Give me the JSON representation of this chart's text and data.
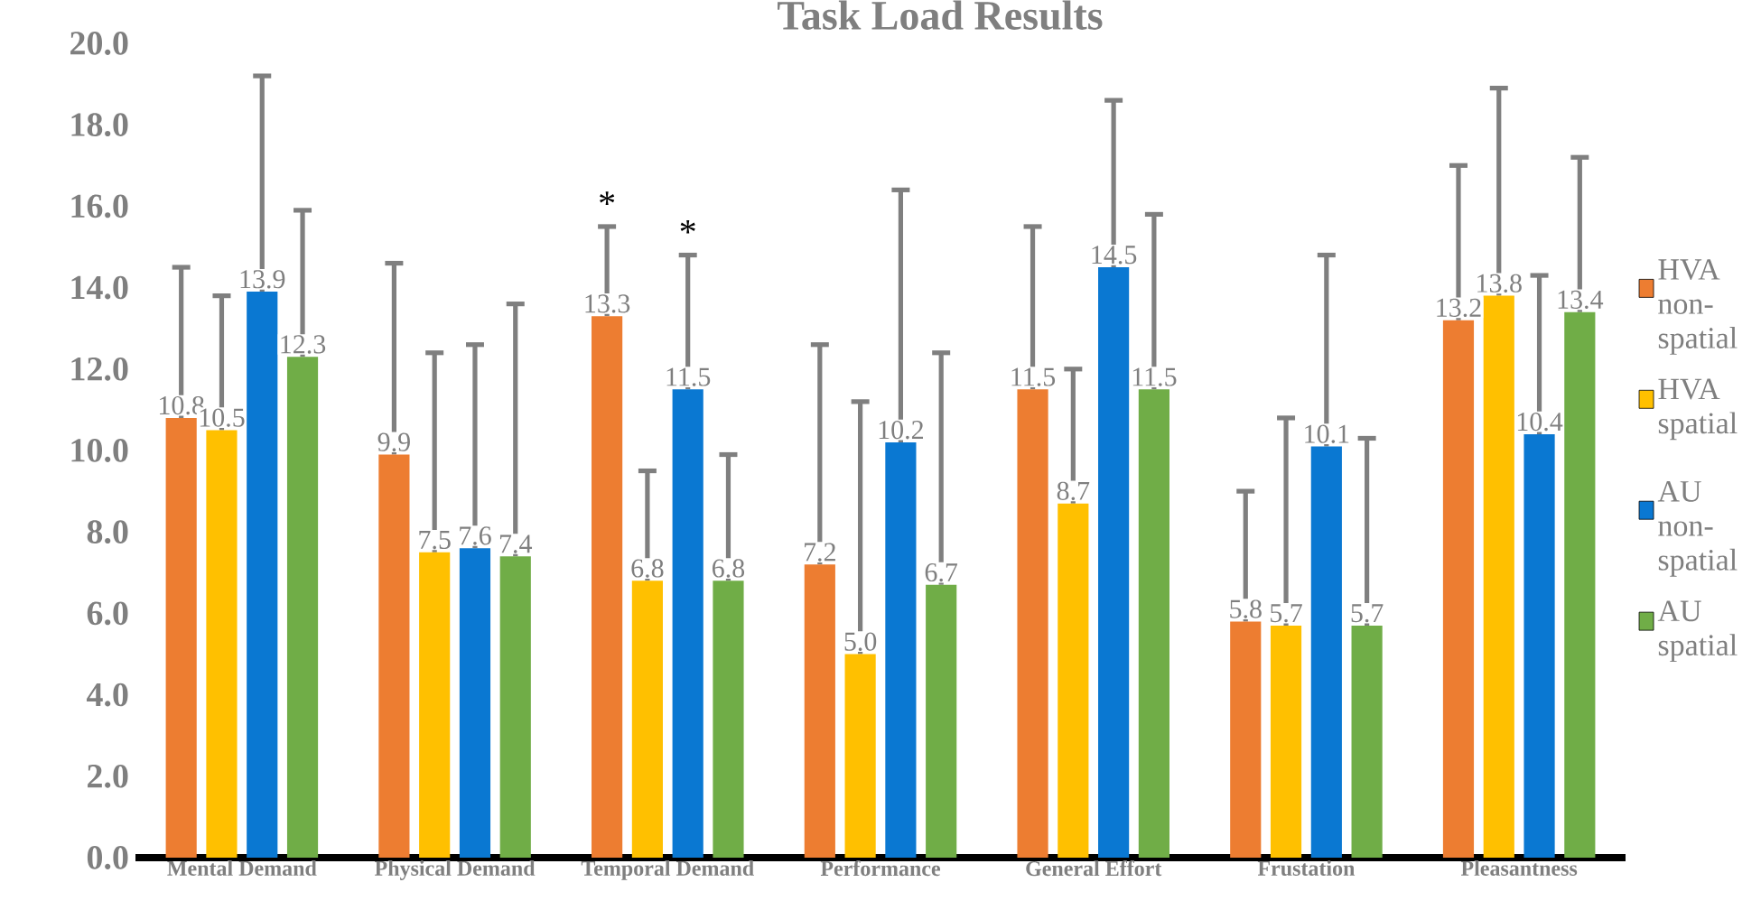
{
  "chart_data": {
    "type": "bar",
    "title": "Task Load Results",
    "categories": [
      "Mental Demand",
      "Physical Demand",
      "Temporal Demand",
      "Performance",
      "General Effort",
      "Frustation",
      "Pleasantness"
    ],
    "series": [
      {
        "name": "HVA non-spatial",
        "color": "#ed7d31",
        "values": [
          10.8,
          9.9,
          13.3,
          7.2,
          11.5,
          5.8,
          13.2
        ],
        "value_labels": [
          "10.8",
          "9.9",
          "13.3",
          "7.2",
          "11.5",
          "5.8",
          "13.2"
        ],
        "errors": [
          [
            10.8,
            14.5
          ],
          [
            9.9,
            14.6
          ],
          [
            13.3,
            15.5
          ],
          [
            7.2,
            12.6
          ],
          [
            11.5,
            15.5
          ],
          [
            5.8,
            9.0
          ],
          [
            13.2,
            17.0
          ]
        ]
      },
      {
        "name": "HVA spatial",
        "color": "#ffc000",
        "values": [
          10.5,
          7.5,
          6.8,
          5.0,
          8.7,
          5.7,
          13.8
        ],
        "value_labels": [
          "10.5",
          "7.5",
          "6.8",
          "5.0",
          "8.7",
          "5.7",
          "13.8"
        ],
        "errors": [
          [
            10.5,
            13.8
          ],
          [
            7.5,
            12.4
          ],
          [
            6.8,
            9.5
          ],
          [
            5.0,
            11.2
          ],
          [
            8.7,
            12.0
          ],
          [
            5.7,
            10.8
          ],
          [
            13.8,
            18.9
          ]
        ]
      },
      {
        "name": "AU non-spatial",
        "color": "#0a78d2",
        "values": [
          13.9,
          7.6,
          11.5,
          10.2,
          14.5,
          10.1,
          10.4
        ],
        "value_labels": [
          "13.9",
          "7.6",
          "11.5",
          "10.2",
          "14.5",
          "10.1",
          "10.4"
        ],
        "errors": [
          [
            13.9,
            19.2
          ],
          [
            7.6,
            12.6
          ],
          [
            11.5,
            14.8
          ],
          [
            10.2,
            16.4
          ],
          [
            14.5,
            18.6
          ],
          [
            10.1,
            14.8
          ],
          [
            10.4,
            14.3
          ]
        ]
      },
      {
        "name": "AU spatial",
        "color": "#70ad47",
        "values": [
          12.3,
          7.4,
          6.8,
          6.7,
          11.5,
          5.7,
          13.4
        ],
        "value_labels": [
          "12.3",
          "7.4",
          "6.8",
          "6.7",
          "11.5",
          "5.7",
          "13.4"
        ],
        "errors": [
          [
            12.3,
            15.9
          ],
          [
            7.4,
            13.6
          ],
          [
            6.8,
            9.9
          ],
          [
            6.7,
            12.4
          ],
          [
            11.5,
            15.8
          ],
          [
            5.7,
            10.3
          ],
          [
            13.4,
            17.2
          ]
        ]
      }
    ],
    "ylim": [
      0,
      20
    ],
    "yticks": [
      {
        "value": 0,
        "label": "0.0"
      },
      {
        "value": 2,
        "label": "2.0"
      },
      {
        "value": 4,
        "label": "4.0"
      },
      {
        "value": 6,
        "label": "6.0"
      },
      {
        "value": 8,
        "label": "8.0"
      },
      {
        "value": 10,
        "label": "10.0"
      },
      {
        "value": 12,
        "label": "12.0"
      },
      {
        "value": 14,
        "label": "14.0"
      },
      {
        "value": 16,
        "label": "16.0"
      },
      {
        "value": 18,
        "label": "18.0"
      },
      {
        "value": 20,
        "label": "20.0"
      }
    ],
    "annotations": [
      "*",
      "*"
    ],
    "legend": "right",
    "grid": false
  }
}
